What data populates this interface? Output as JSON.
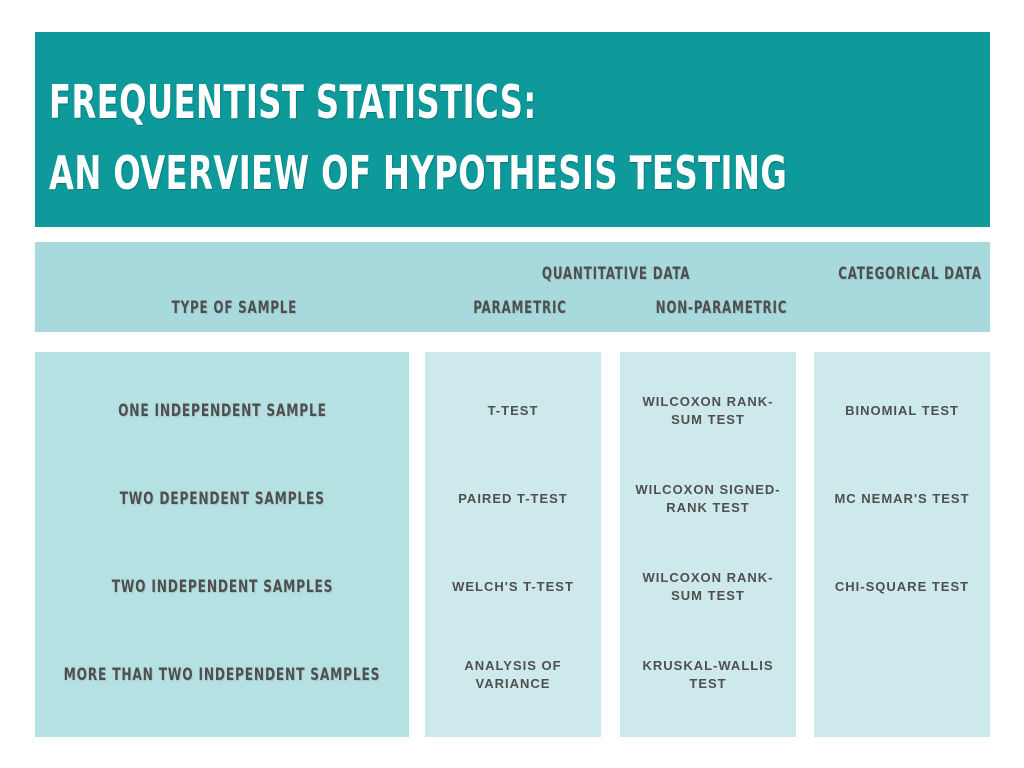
{
  "title": {
    "line1": "FREQUENTIST STATISTICS:",
    "line2": "AN OVERVIEW OF HYPOTHESIS TESTING"
  },
  "header": {
    "type_of_sample": "TYPE OF SAMPLE",
    "quantitative_data": "QUANTITATIVE DATA",
    "categorical_data": "CATEGORICAL DATA",
    "parametric": "PARAMETRIC",
    "non_parametric": "NON-PARAMETRIC"
  },
  "rows": [
    {
      "sample": "ONE INDEPENDENT SAMPLE",
      "parametric": "T-TEST",
      "non_parametric": "WILCOXON RANK-SUM TEST",
      "categorical": "BINOMIAL TEST"
    },
    {
      "sample": "TWO DEPENDENT SAMPLES",
      "parametric": "PAIRED T-TEST",
      "non_parametric": "WILCOXON SIGNED-RANK TEST",
      "categorical": "MC NEMAR'S TEST"
    },
    {
      "sample": "TWO INDEPENDENT SAMPLES",
      "parametric": "WELCH'S T-TEST",
      "non_parametric": "WILCOXON RANK-SUM TEST",
      "categorical": "CHI-SQUARE TEST"
    },
    {
      "sample": "MORE THAN TWO INDEPENDENT SAMPLES",
      "parametric": "ANALYSIS OF VARIANCE",
      "non_parametric": "KRUSKAL-WALLIS TEST",
      "categorical": ""
    }
  ],
  "colors": {
    "banner": "#0e9a9b",
    "header_band": "#a7d9dd",
    "sample_column": "#b6e1e3",
    "test_columns": "#cde9eb",
    "text": "#4f4f4f"
  }
}
